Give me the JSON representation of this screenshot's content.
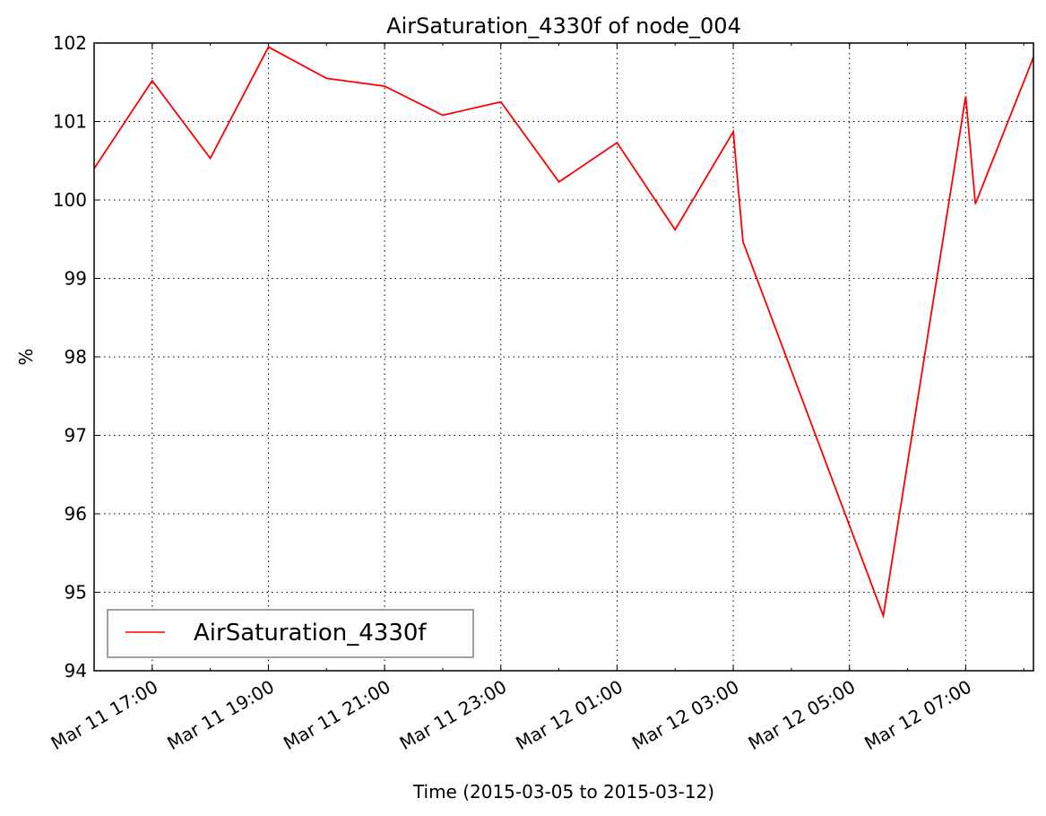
{
  "chart_data": {
    "type": "line",
    "title": "AirSaturation_4330f of node_004",
    "xlabel": "Time (2015-03-05 to 2015-03-12)",
    "ylabel": "%",
    "ylim": [
      94,
      102
    ],
    "xlim": [
      "2015-03-11 16:00",
      "2015-03-12 08:10"
    ],
    "x_ticks": [
      {
        "time": "2015-03-11 17:00",
        "label": "Mar 11 17:00"
      },
      {
        "time": "2015-03-11 19:00",
        "label": "Mar 11 19:00"
      },
      {
        "time": "2015-03-11 21:00",
        "label": "Mar 11 21:00"
      },
      {
        "time": "2015-03-11 23:00",
        "label": "Mar 11 23:00"
      },
      {
        "time": "2015-03-12 01:00",
        "label": "Mar 12 01:00"
      },
      {
        "time": "2015-03-12 03:00",
        "label": "Mar 12 03:00"
      },
      {
        "time": "2015-03-12 05:00",
        "label": "Mar 12 05:00"
      },
      {
        "time": "2015-03-12 07:00",
        "label": "Mar 12 07:00"
      }
    ],
    "y_ticks": [
      "94",
      "95",
      "96",
      "97",
      "98",
      "99",
      "100",
      "101",
      "102"
    ],
    "grid": true,
    "legend_position": "lower-left",
    "series": [
      {
        "name": "AirSaturation_4330f",
        "color": "#ff0000",
        "points": [
          {
            "x": "2015-03-11 16:00",
            "y": 100.4
          },
          {
            "x": "2015-03-11 17:00",
            "y": 101.52
          },
          {
            "x": "2015-03-11 18:00",
            "y": 100.53
          },
          {
            "x": "2015-03-11 19:00",
            "y": 101.95
          },
          {
            "x": "2015-03-11 20:00",
            "y": 101.55
          },
          {
            "x": "2015-03-11 21:00",
            "y": 101.45
          },
          {
            "x": "2015-03-11 22:00",
            "y": 101.08
          },
          {
            "x": "2015-03-11 23:00",
            "y": 101.25
          },
          {
            "x": "2015-03-12 00:00",
            "y": 100.23
          },
          {
            "x": "2015-03-12 01:00",
            "y": 100.73
          },
          {
            "x": "2015-03-12 02:00",
            "y": 99.62
          },
          {
            "x": "2015-03-12 03:00",
            "y": 100.87
          },
          {
            "x": "2015-03-12 03:10",
            "y": 99.47
          },
          {
            "x": "2015-03-12 05:35",
            "y": 94.7
          },
          {
            "x": "2015-03-12 07:00",
            "y": 101.32
          },
          {
            "x": "2015-03-12 07:10",
            "y": 99.95
          },
          {
            "x": "2015-03-12 08:10",
            "y": 101.82
          }
        ]
      }
    ]
  }
}
